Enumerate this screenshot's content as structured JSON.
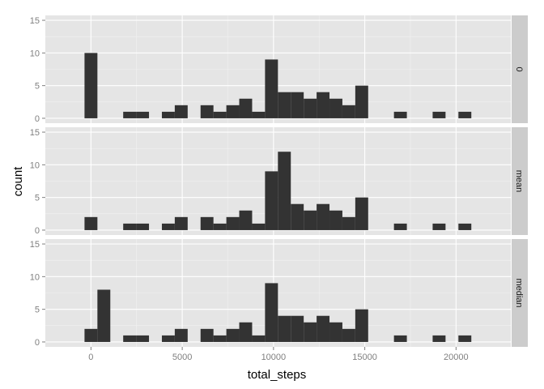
{
  "chart_data": {
    "type": "bar",
    "xlabel": "total_steps",
    "ylabel": "count",
    "xlim": [
      -2500,
      23000
    ],
    "ylim": [
      -0.75,
      15.75
    ],
    "x_ticks": [
      0,
      5000,
      10000,
      15000,
      20000
    ],
    "y_ticks": [
      0,
      5,
      10,
      15
    ],
    "bin_width": 706.33,
    "bin_start": -353.17,
    "grid": true,
    "legend": "none",
    "colors": {
      "panel": "#E5E5E5",
      "strip": "#CCCCCC",
      "bar": "#333333",
      "grid_major": "#FFFFFF",
      "grid_minor": "#F2F2F2"
    },
    "facets": [
      {
        "label": "0",
        "counts": [
          10,
          0,
          0,
          1,
          1,
          0,
          1,
          2,
          0,
          2,
          1,
          2,
          3,
          1,
          9,
          4,
          4,
          3,
          4,
          3,
          2,
          5,
          0,
          0,
          1,
          0,
          0,
          1,
          0,
          1
        ]
      },
      {
        "label": "mean",
        "counts": [
          2,
          0,
          0,
          1,
          1,
          0,
          1,
          2,
          0,
          2,
          1,
          2,
          3,
          1,
          9,
          12,
          4,
          3,
          4,
          3,
          2,
          5,
          0,
          0,
          1,
          0,
          0,
          1,
          0,
          1
        ]
      },
      {
        "label": "median",
        "counts": [
          2,
          8,
          0,
          1,
          1,
          0,
          1,
          2,
          0,
          2,
          1,
          2,
          3,
          1,
          9,
          4,
          4,
          3,
          4,
          3,
          2,
          5,
          0,
          0,
          1,
          0,
          0,
          1,
          0,
          1
        ]
      }
    ]
  }
}
